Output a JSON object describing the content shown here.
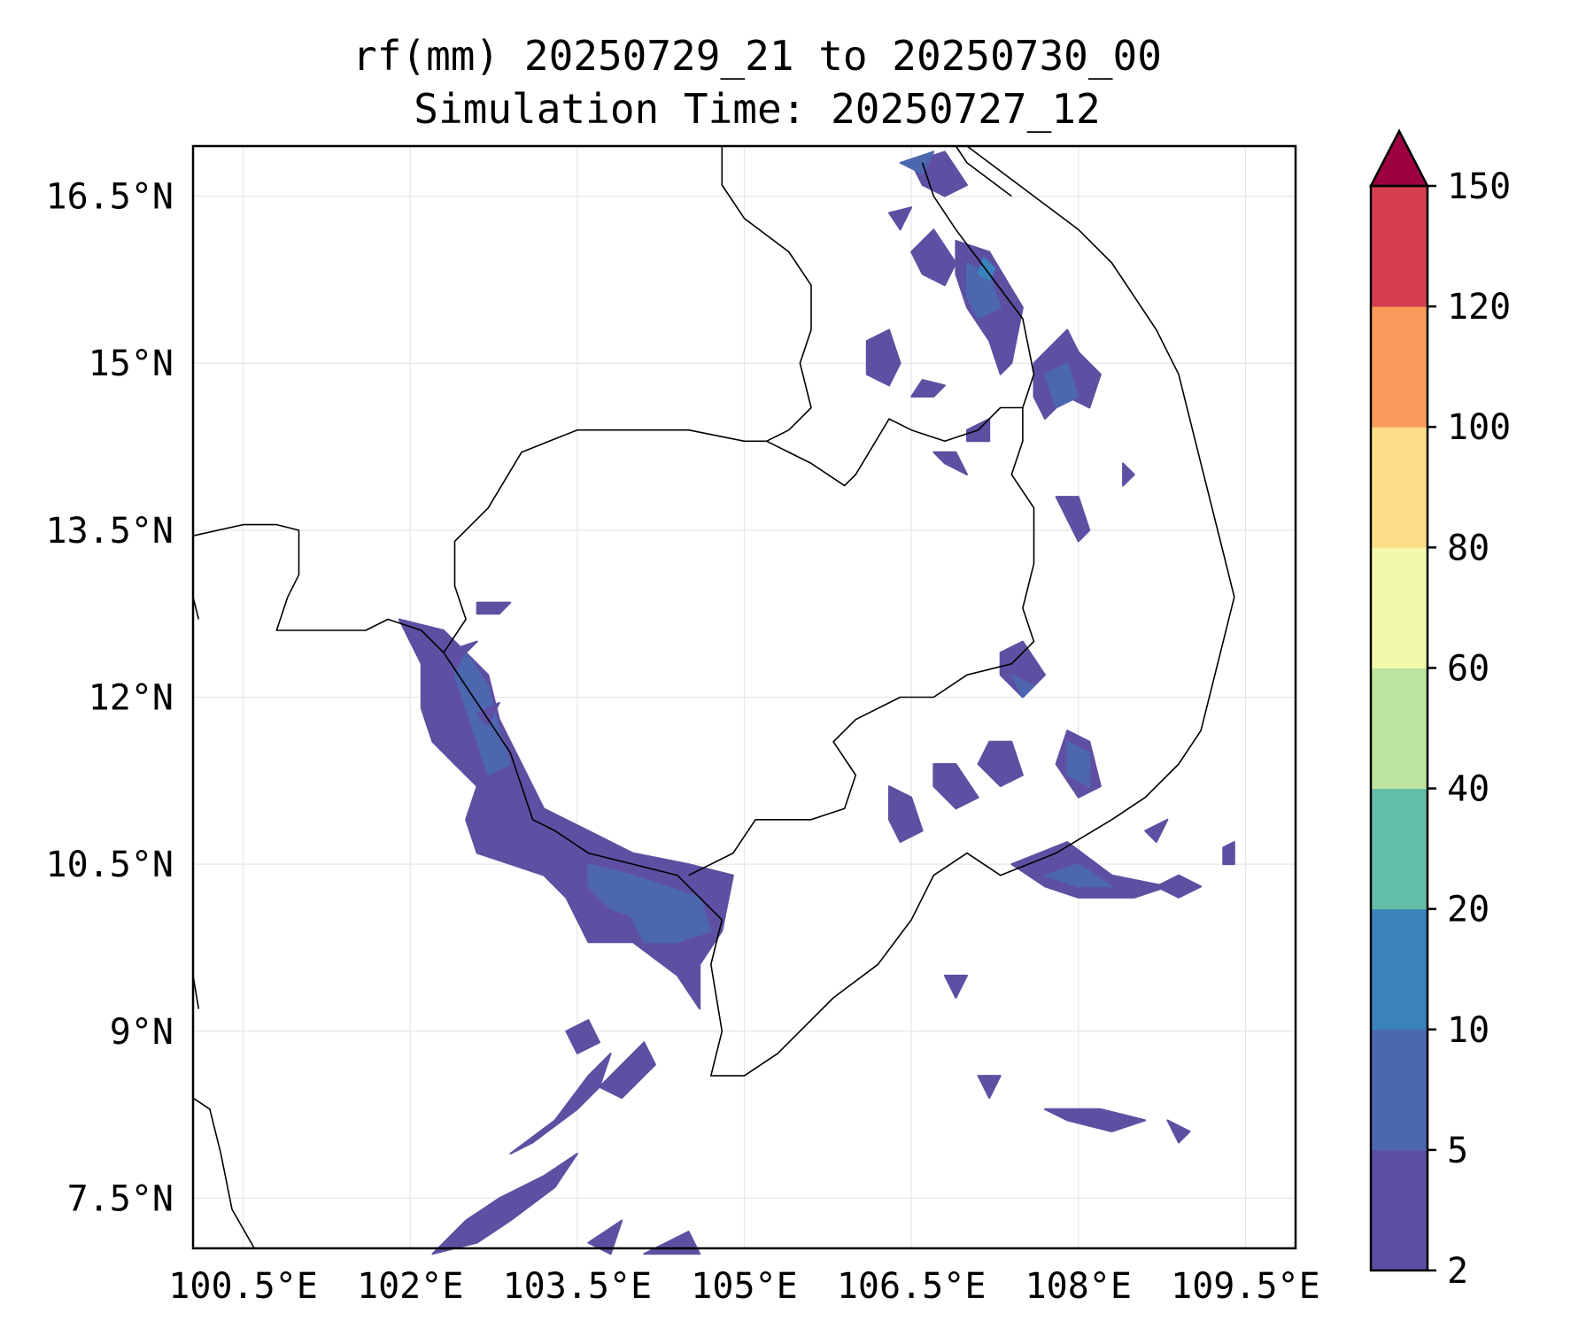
{
  "title": {
    "line1": "rf(mm) 20250729_21 to 20250730_00",
    "line2": "Simulation Time: 20250727_12"
  },
  "map": {
    "extent": {
      "lon": [
        100.05,
        109.95
      ],
      "lat": [
        7.05,
        16.95
      ]
    },
    "grid": true,
    "lat_ticks": [
      {
        "value": 16.5,
        "label": "16.5°N"
      },
      {
        "value": 15.0,
        "label": "15°N"
      },
      {
        "value": 13.5,
        "label": "13.5°N"
      },
      {
        "value": 12.0,
        "label": "12°N"
      },
      {
        "value": 10.5,
        "label": "10.5°N"
      },
      {
        "value": 9.0,
        "label": "9°N"
      },
      {
        "value": 7.5,
        "label": "7.5°N"
      }
    ],
    "lon_ticks": [
      {
        "value": 100.5,
        "label": "100.5°E"
      },
      {
        "value": 102.0,
        "label": "102°E"
      },
      {
        "value": 103.5,
        "label": "103.5°E"
      },
      {
        "value": 105.0,
        "label": "105°E"
      },
      {
        "value": 106.5,
        "label": "106.5°E"
      },
      {
        "value": 108.0,
        "label": "108°E"
      },
      {
        "value": 109.5,
        "label": "109.5°E"
      }
    ],
    "outline_color": "#000000"
  },
  "colorbar": {
    "levels": [
      "2",
      "5",
      "10",
      "20",
      "40",
      "60",
      "80",
      "100",
      "120",
      "150"
    ],
    "colors": [
      "#5e4fa2",
      "#4d66b0",
      "#3a82bb",
      "#62bea6",
      "#bde3a0",
      "#f2f9ab",
      "#fbdd88",
      "#f99b5a",
      "#d53e4f"
    ],
    "extend_color": "#9e0142",
    "extend": "max"
  },
  "rain_colors": {
    "light": "#5e4fa2",
    "moderate": "#4d66b0",
    "heavy": "#3a82bb"
  }
}
